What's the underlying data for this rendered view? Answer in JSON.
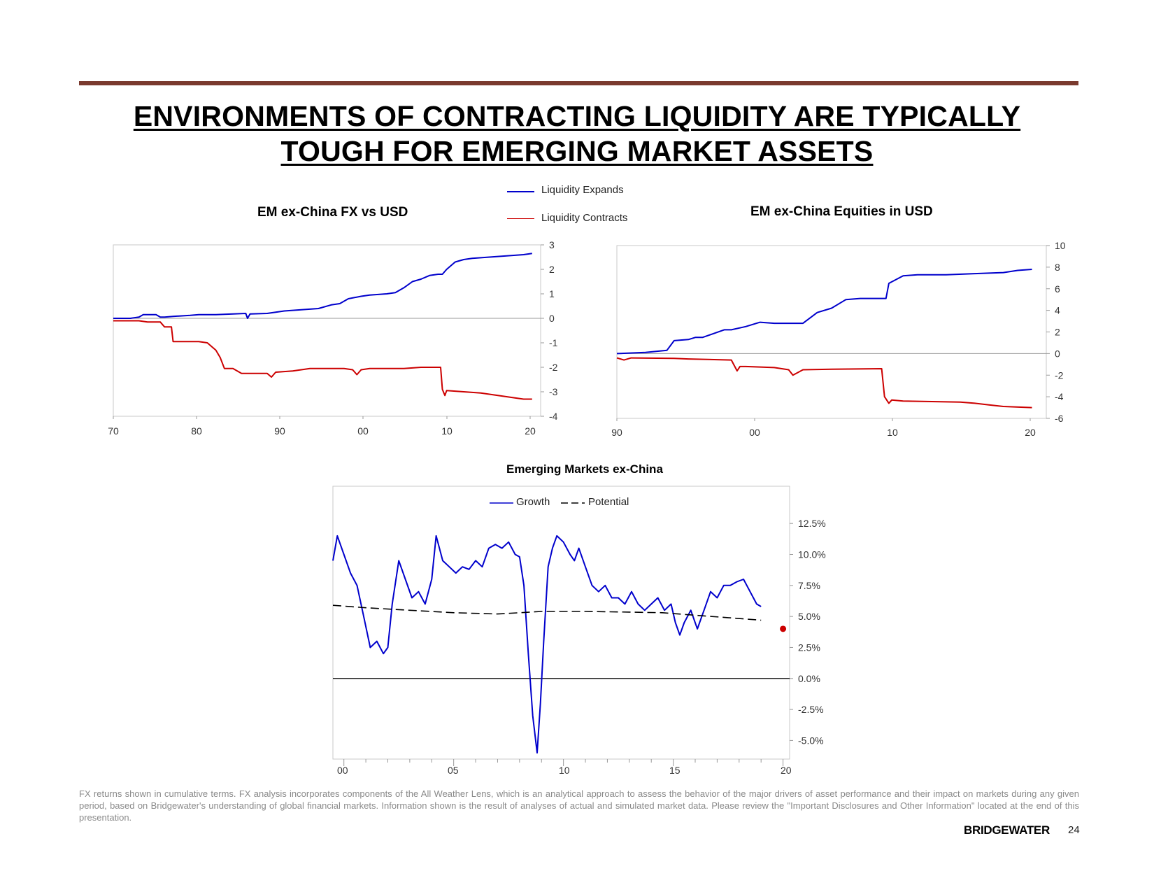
{
  "header": {
    "title_line1": "ENVIRONMENTS OF CONTRACTING LIQUIDITY ARE TYPICALLY",
    "title_line2": "TOUGH FOR EMERGING MARKET ASSETS"
  },
  "legend": {
    "expands": "Liquidity Expands",
    "contracts": "Liquidity Contracts",
    "expands_color": "#0000cc",
    "contracts_color": "#cc0000"
  },
  "footnote": "FX returns shown in cumulative terms. FX analysis incorporates components of the All Weather Lens, which is an analytical approach to assess the behavior of the major drivers of asset performance and their impact on markets during any given period, based on Bridgewater's understanding of global financial markets. Information shown is the result of analyses of actual and simulated market data. Please review the \"Important Disclosures and Other Information\" located at the end of this presentation.",
  "brand": "BRIDGEWATER",
  "page_number": "24",
  "chart_data": [
    {
      "type": "line",
      "title": "EM ex-China FX vs USD",
      "xlim": [
        1970,
        2020
      ],
      "ylim": [
        -4,
        3
      ],
      "x_ticks": [
        "70",
        "80",
        "90",
        "00",
        "10",
        "20"
      ],
      "y_ticks": [
        "3",
        "2",
        "1",
        "0",
        "-1",
        "-2",
        "-3",
        "-4"
      ],
      "series": [
        {
          "name": "Liquidity Expands",
          "color": "#0000cc",
          "x": [
            1970,
            1972,
            1973,
            1973.5,
            1975,
            1975.5,
            1976,
            1977,
            1979,
            1980,
            1982,
            1984,
            1985.5,
            1985.7,
            1986,
            1988,
            1990,
            1992,
            1994,
            1995.5,
            1996.5,
            1997.5,
            1999,
            2000,
            2002,
            2003,
            2004,
            2005,
            2006,
            2007,
            2008,
            2008.5,
            2009,
            2010,
            2011,
            2012,
            2014,
            2016,
            2018,
            2019
          ],
          "y": [
            0,
            0,
            0.05,
            0.15,
            0.15,
            0.05,
            0.05,
            0.08,
            0.12,
            0.15,
            0.15,
            0.18,
            0.2,
            0,
            0.18,
            0.2,
            0.3,
            0.35,
            0.4,
            0.55,
            0.6,
            0.8,
            0.9,
            0.95,
            1,
            1.05,
            1.25,
            1.5,
            1.6,
            1.75,
            1.8,
            1.8,
            2.0,
            2.3,
            2.4,
            2.45,
            2.5,
            2.55,
            2.6,
            2.65
          ]
        },
        {
          "name": "Liquidity Contracts",
          "color": "#cc0000",
          "x": [
            1970,
            1973,
            1974,
            1975.5,
            1976,
            1976.8,
            1977,
            1980,
            1981,
            1982,
            1982.5,
            1983,
            1984,
            1985,
            1988,
            1988.5,
            1989,
            1991,
            1993,
            1995,
            1996,
            1997,
            1998,
            1998.5,
            1999,
            2000,
            2002,
            2004,
            2006,
            2008.3,
            2008.5,
            2008.8,
            2009,
            2011,
            2013,
            2015,
            2017,
            2018,
            2019
          ],
          "y": [
            -0.1,
            -0.1,
            -0.15,
            -0.15,
            -0.35,
            -0.35,
            -0.95,
            -0.95,
            -1.0,
            -1.3,
            -1.6,
            -2.05,
            -2.05,
            -2.25,
            -2.25,
            -2.4,
            -2.2,
            -2.15,
            -2.05,
            -2.05,
            -2.05,
            -2.05,
            -2.1,
            -2.3,
            -2.1,
            -2.05,
            -2.05,
            -2.05,
            -2.0,
            -2.0,
            -2.9,
            -3.15,
            -2.95,
            -3.0,
            -3.05,
            -3.15,
            -3.25,
            -3.3,
            -3.3
          ]
        }
      ]
    },
    {
      "type": "line",
      "title": "EM ex-China Equities in USD",
      "xlim": [
        1990,
        2020
      ],
      "ylim": [
        -6,
        10
      ],
      "x_ticks": [
        "90",
        "00",
        "10",
        "20"
      ],
      "y_ticks": [
        "10",
        "8",
        "6",
        "4",
        "2",
        "0",
        "-2",
        "-4",
        "-6"
      ],
      "series": [
        {
          "name": "Liquidity Expands",
          "color": "#0000cc",
          "x": [
            1990,
            1992,
            1993.5,
            1994,
            1995,
            1995.5,
            1996,
            1997.5,
            1998,
            1999,
            2000,
            2001,
            2003,
            2004,
            2005,
            2006,
            2007,
            2008,
            2008.8,
            2009,
            2010,
            2011,
            2013,
            2015,
            2016,
            2017,
            2018,
            2019
          ],
          "y": [
            0,
            0.1,
            0.3,
            1.2,
            1.3,
            1.5,
            1.5,
            2.2,
            2.2,
            2.5,
            2.9,
            2.8,
            2.8,
            3.8,
            4.2,
            5.0,
            5.1,
            5.1,
            5.1,
            6.5,
            7.2,
            7.3,
            7.3,
            7.4,
            7.45,
            7.5,
            7.7,
            7.8
          ]
        },
        {
          "name": "Liquidity Contracts",
          "color": "#cc0000",
          "x": [
            1990,
            1990.5,
            1991,
            1994,
            1995,
            1998,
            1998.4,
            1998.6,
            1999,
            2001,
            2002,
            2002.3,
            2003,
            2005,
            2008.5,
            2008.7,
            2009,
            2009.2,
            2010,
            2014,
            2015,
            2016,
            2017,
            2019
          ],
          "y": [
            -0.4,
            -0.6,
            -0.4,
            -0.45,
            -0.5,
            -0.6,
            -1.6,
            -1.2,
            -1.2,
            -1.3,
            -1.5,
            -2.0,
            -1.5,
            -1.45,
            -1.4,
            -4.0,
            -4.6,
            -4.3,
            -4.4,
            -4.5,
            -4.6,
            -4.75,
            -4.9,
            -5.0
          ]
        }
      ]
    },
    {
      "type": "line",
      "title": "Emerging Markets ex-China",
      "xlim": [
        1999.5,
        2020.3
      ],
      "ylim": [
        -6.5,
        15.5
      ],
      "x_ticks": [
        "00",
        "05",
        "10",
        "15",
        "20"
      ],
      "y_ticks": [
        "12.5%",
        "10.0%",
        "7.5%",
        "5.0%",
        "2.5%",
        "0.0%",
        "-2.5%",
        "-5.0%"
      ],
      "legend": [
        "Growth",
        "Potential"
      ],
      "series": [
        {
          "name": "Growth",
          "color": "#0000cc",
          "x": [
            1999.5,
            1999.7,
            2000,
            2000.3,
            2000.6,
            2000.9,
            2001.2,
            2001.5,
            2001.8,
            2002.0,
            2002.2,
            2002.5,
            2002.8,
            2003.1,
            2003.4,
            2003.7,
            2004.0,
            2004.2,
            2004.5,
            2004.8,
            2005.1,
            2005.4,
            2005.7,
            2006.0,
            2006.3,
            2006.6,
            2006.9,
            2007.2,
            2007.5,
            2007.8,
            2008.0,
            2008.2,
            2008.4,
            2008.6,
            2008.8,
            2008.95,
            2009.1,
            2009.3,
            2009.5,
            2009.7,
            2010.0,
            2010.3,
            2010.5,
            2010.7,
            2011.0,
            2011.3,
            2011.6,
            2011.9,
            2012.2,
            2012.5,
            2012.8,
            2013.1,
            2013.4,
            2013.7,
            2014.0,
            2014.3,
            2014.6,
            2014.9,
            2015.1,
            2015.3,
            2015.5,
            2015.8,
            2016.1,
            2016.4,
            2016.7,
            2017.0,
            2017.3,
            2017.6,
            2017.9,
            2018.2,
            2018.5,
            2018.8,
            2019.0
          ],
          "y": [
            9.5,
            11.5,
            10,
            8.5,
            7.5,
            5.0,
            2.5,
            3.0,
            2.0,
            2.5,
            6,
            9.5,
            8.0,
            6.5,
            7.0,
            6.0,
            8.0,
            11.5,
            9.5,
            9.0,
            8.5,
            9.0,
            8.8,
            9.5,
            9.0,
            10.5,
            10.8,
            10.5,
            11.0,
            10.0,
            9.8,
            7.5,
            2.0,
            -3.0,
            -6.0,
            -2.0,
            3.0,
            9.0,
            10.5,
            11.5,
            11.0,
            10.0,
            9.5,
            10.5,
            9.0,
            7.5,
            7.0,
            7.5,
            6.5,
            6.5,
            6.0,
            7.0,
            6.0,
            5.5,
            6.0,
            6.5,
            5.5,
            6.0,
            4.5,
            3.5,
            4.5,
            5.5,
            4.0,
            5.5,
            7.0,
            6.5,
            7.5,
            7.5,
            7.8,
            8.0,
            7.0,
            6.0,
            5.8
          ]
        },
        {
          "name": "Potential",
          "color": "#000000",
          "dashed": true,
          "x": [
            1999.5,
            2001,
            2003,
            2005,
            2007,
            2009,
            2011,
            2013,
            2014.5,
            2016,
            2017.5,
            2019
          ],
          "y": [
            5.9,
            5.7,
            5.5,
            5.3,
            5.2,
            5.4,
            5.4,
            5.35,
            5.3,
            5.1,
            4.9,
            4.7
          ]
        },
        {
          "name": "Point",
          "color": "#cc0000",
          "x": [
            2020.0
          ],
          "y": [
            4.0
          ]
        }
      ]
    }
  ]
}
